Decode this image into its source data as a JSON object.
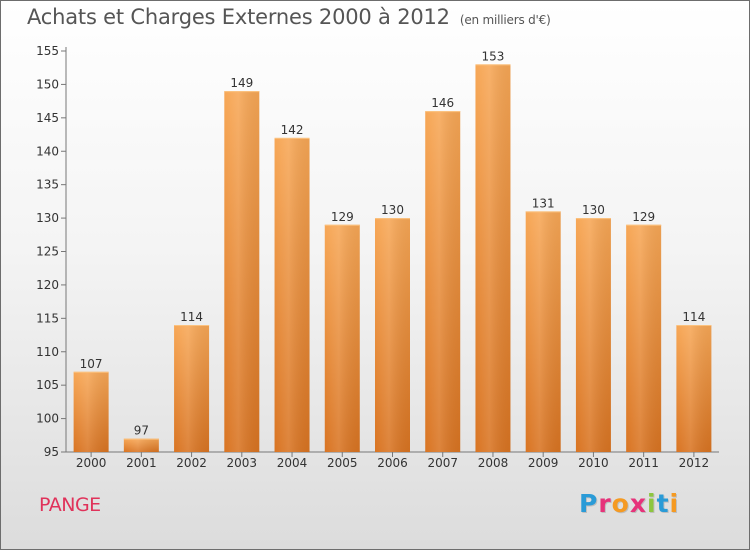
{
  "title": "Achats et Charges Externes 2000 à 2012",
  "unit_label": "(en milliers d'€)",
  "location": "PANGE",
  "logo": {
    "letters": [
      "P",
      "r",
      "o",
      "x",
      "i",
      "t",
      "i"
    ],
    "colors": [
      "#2a9bd7",
      "#e6337a",
      "#f59a22",
      "#e6337a",
      "#8dc63f",
      "#2a9bd7",
      "#f59a22"
    ]
  },
  "colors": {
    "bar_top": "#f7a756",
    "bar_bottom": "#d97422",
    "title": "#555555",
    "location": "#e0325a"
  },
  "chart_data": {
    "type": "bar",
    "categories": [
      "2000",
      "2001",
      "2002",
      "2003",
      "2004",
      "2005",
      "2006",
      "2007",
      "2008",
      "2009",
      "2010",
      "2011",
      "2012"
    ],
    "values": [
      107,
      97,
      114,
      149,
      142,
      129,
      130,
      146,
      153,
      131,
      130,
      129,
      114
    ],
    "ylim": [
      95,
      155
    ],
    "yticks": [
      95,
      100,
      105,
      110,
      115,
      120,
      125,
      130,
      135,
      140,
      145,
      150,
      155
    ],
    "grid": false,
    "legend": "none"
  }
}
